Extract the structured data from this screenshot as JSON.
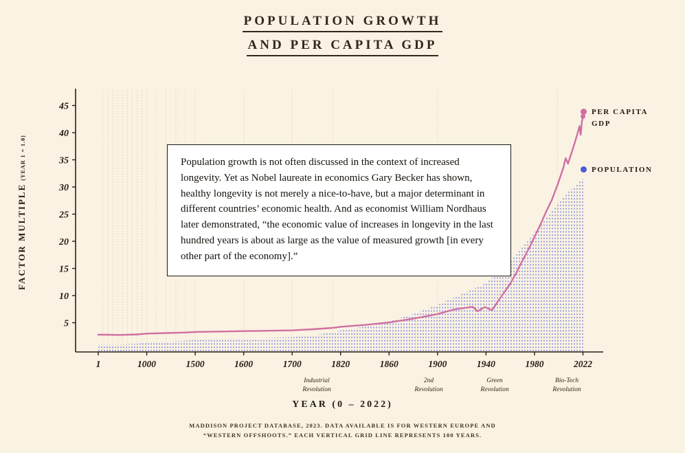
{
  "title": {
    "line1": "POPULATION GROWTH",
    "line2": "AND PER CAPITA GDP"
  },
  "y_axis": {
    "label": "FACTOR MULTIPLE",
    "label_sub": "(YEAR 1 = 1.0)"
  },
  "x_axis": {
    "label": "YEAR (0 – 2022)"
  },
  "legend": [
    {
      "label": "PER CAPITA GDP",
      "color": "#d06fa2",
      "marker": "pink-dot"
    },
    {
      "label": "POPULATION",
      "color": "#4a5cd8",
      "marker": "blue-dot"
    }
  ],
  "textbox": {
    "text": "Population growth is not often discussed in the context of increased longevity. Yet as Nobel laureate in economics Gary Becker has shown, healthy longevity is not merely a nice-to-have, but a major determinant in different countries’ economic health. And as economist William Nordhaus later demonstrated, “the economic value of increases in longevity in the last hundred years is about as large as the value of measured growth [in every other part of the economy].”"
  },
  "annotations": [
    {
      "line1": "Industrial",
      "line2": "Revolution",
      "x_center": 461
    },
    {
      "line1": "2nd",
      "line2": "Revolution",
      "x_center": 624
    },
    {
      "line1": "Green",
      "line2": "Revolution",
      "x_center": 720
    },
    {
      "line1": "Bio-Tech",
      "line2": "Revolution",
      "x_center": 825
    }
  ],
  "footer": {
    "line1": "MADDISON PROJECT DATABASE, 2023. DATA AVAILABLE IS FOR WESTERN EUROPE AND",
    "line2": "“WESTERN OFFSHOOTS.” EACH VERTICAL GRID LINE REPRESENTS 100 YEARS."
  },
  "chart_data": {
    "type": "line",
    "title": "Population Growth and Per Capita GDP",
    "xlabel": "YEAR (0 – 2022)",
    "ylabel": "FACTOR MULTIPLE (YEAR 1 = 1.0)",
    "x_ticks": [
      1,
      1000,
      1500,
      1600,
      1700,
      1820,
      1860,
      1900,
      1940,
      1980,
      2022
    ],
    "y_ticks": [
      5,
      10,
      15,
      20,
      25,
      30,
      35,
      40,
      45
    ],
    "ylim": [
      0,
      46
    ],
    "x_scale": "segmented-equal-spacing-between-ticks",
    "gridlines": {
      "note": "each vertical grid line represents 100 years",
      "year_start": 100,
      "year_end": 2000,
      "step": 100
    },
    "colors": {
      "background": "#faf2e3",
      "grid": "#d8c7a2",
      "gdp": "#d06fa2",
      "population": "#5b6ada",
      "axis": "#2a2015",
      "text": "#241b10"
    },
    "series": [
      {
        "name": "PER CAPITA GDP",
        "style": "line",
        "color": "#d06fa2",
        "points": [
          [
            1,
            2.8
          ],
          [
            200,
            2.8
          ],
          [
            400,
            2.75
          ],
          [
            600,
            2.8
          ],
          [
            800,
            2.85
          ],
          [
            1000,
            3.0
          ],
          [
            1200,
            3.1
          ],
          [
            1400,
            3.2
          ],
          [
            1500,
            3.3
          ],
          [
            1600,
            3.45
          ],
          [
            1700,
            3.6
          ],
          [
            1750,
            3.8
          ],
          [
            1800,
            4.05
          ],
          [
            1820,
            4.25
          ],
          [
            1840,
            4.6
          ],
          [
            1860,
            5.05
          ],
          [
            1880,
            5.75
          ],
          [
            1900,
            6.6
          ],
          [
            1913,
            7.4
          ],
          [
            1929,
            7.95
          ],
          [
            1933,
            7.1
          ],
          [
            1939,
            7.9
          ],
          [
            1945,
            7.3
          ],
          [
            1950,
            9.0
          ],
          [
            1955,
            10.6
          ],
          [
            1960,
            12.2
          ],
          [
            1965,
            14.2
          ],
          [
            1970,
            16.4
          ],
          [
            1975,
            18.5
          ],
          [
            1980,
            20.8
          ],
          [
            1985,
            23.0
          ],
          [
            1990,
            25.4
          ],
          [
            1995,
            27.6
          ],
          [
            2000,
            30.4
          ],
          [
            2005,
            33.5
          ],
          [
            2007,
            35.3
          ],
          [
            2009,
            34.3
          ],
          [
            2012,
            36.2
          ],
          [
            2015,
            38.2
          ],
          [
            2018,
            40.4
          ],
          [
            2019,
            41.2
          ],
          [
            2020,
            39.6
          ],
          [
            2021,
            41.9
          ],
          [
            2022,
            43.0
          ]
        ]
      },
      {
        "name": "POPULATION",
        "style": "dotted-columns",
        "color": "#5b6ada",
        "points": [
          [
            1,
            1.0
          ],
          [
            200,
            1.0
          ],
          [
            400,
            1.0
          ],
          [
            600,
            1.05
          ],
          [
            800,
            1.15
          ],
          [
            1000,
            1.3
          ],
          [
            1200,
            1.55
          ],
          [
            1400,
            1.7
          ],
          [
            1500,
            1.9
          ],
          [
            1600,
            2.1
          ],
          [
            1700,
            2.35
          ],
          [
            1750,
            2.65
          ],
          [
            1800,
            3.25
          ],
          [
            1820,
            3.6
          ],
          [
            1840,
            4.3
          ],
          [
            1860,
            5.2
          ],
          [
            1880,
            6.6
          ],
          [
            1900,
            8.3
          ],
          [
            1920,
            10.3
          ],
          [
            1940,
            12.3
          ],
          [
            1960,
            16.2
          ],
          [
            1980,
            21.5
          ],
          [
            2000,
            26.8
          ],
          [
            2010,
            29.2
          ],
          [
            2022,
            31.5
          ]
        ]
      }
    ]
  }
}
